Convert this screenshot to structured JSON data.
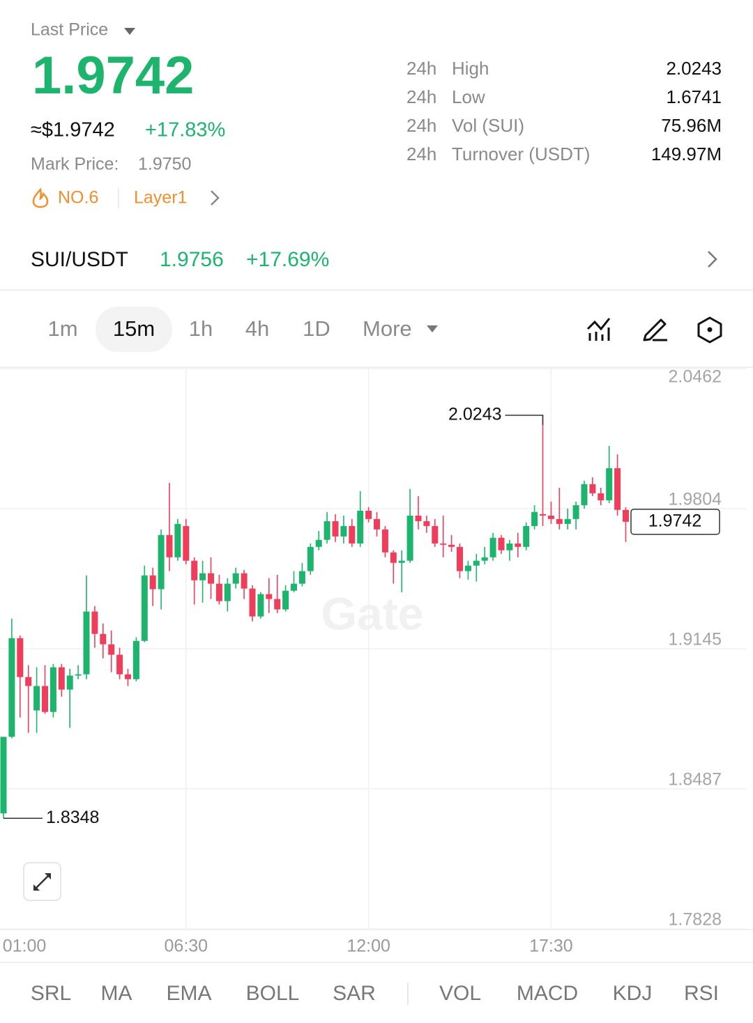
{
  "header": {
    "label": "Last Price",
    "price": "1.9742",
    "usd_price": "≈$1.9742",
    "change": "+17.83%",
    "mark_price_label": "Mark Price:",
    "mark_price": "1.9750",
    "rank": "NO.6",
    "sector": "Layer1"
  },
  "stats": [
    {
      "period": "24h",
      "label": "High",
      "value": "2.0243"
    },
    {
      "period": "24h",
      "label": "Low",
      "value": "1.6741"
    },
    {
      "period": "24h",
      "label": "Vol (SUI)",
      "value": "75.96M"
    },
    {
      "period": "24h",
      "label": "Turnover (USDT)",
      "value": "149.97M"
    }
  ],
  "pair": {
    "name": "SUI/USDT",
    "price": "1.9756",
    "change": "+17.69%"
  },
  "intervals": [
    "1m",
    "15m",
    "1h",
    "4h",
    "1D",
    "More"
  ],
  "active_interval": 1,
  "chart_data": {
    "type": "candlestick",
    "watermark": "Gate",
    "up_color": "#1db46e",
    "down_color": "#ef3e5c",
    "grid": true,
    "ylim": [
      1.7828,
      2.0462
    ],
    "yticks": [
      2.0462,
      1.9804,
      1.9145,
      1.8487,
      1.7828
    ],
    "categories": [
      "01:00",
      null,
      null,
      null,
      null,
      null,
      null,
      null,
      null,
      null,
      null,
      null,
      null,
      null,
      null,
      null,
      null,
      null,
      null,
      null,
      null,
      null,
      "06:30",
      null,
      null,
      null,
      null,
      null,
      null,
      null,
      null,
      null,
      null,
      null,
      null,
      null,
      null,
      null,
      null,
      null,
      null,
      null,
      null,
      null,
      "12:00",
      null,
      null,
      null,
      null,
      null,
      null,
      null,
      null,
      null,
      null,
      null,
      null,
      null,
      null,
      null,
      null,
      null,
      null,
      null,
      null,
      null,
      "17:30",
      null,
      null,
      null,
      null,
      null,
      null,
      null,
      null,
      null
    ],
    "open": [
      1.8371,
      1.8731,
      1.9195,
      1.9012,
      1.8855,
      1.897,
      1.8848,
      1.9058,
      1.8953,
      1.9019,
      1.9025,
      1.932,
      1.9215,
      1.9166,
      1.9117,
      1.9025,
      1.9002,
      1.9182,
      1.949,
      1.9425,
      1.968,
      1.9575,
      1.9722,
      1.9559,
      1.9467,
      1.95,
      1.9451,
      1.9369,
      1.9451,
      1.95,
      1.9428,
      1.9297,
      1.9402,
      1.9379,
      1.933,
      1.9418,
      1.9451,
      1.951,
      1.9624,
      1.9657,
      1.9745,
      1.9673,
      1.9722,
      1.964,
      1.9794,
      1.9755,
      1.9706,
      1.9598,
      1.9549,
      1.9559,
      1.9771,
      1.9745,
      1.9722,
      1.964,
      1.9634,
      1.9624,
      1.951,
      1.9536,
      1.9559,
      1.9575,
      1.9667,
      1.9608,
      1.964,
      1.9624,
      1.9722,
      1.9778,
      1.9771,
      1.9755,
      1.9732,
      1.9755,
      1.982,
      1.9919,
      1.9876,
      1.9843,
      1.9994,
      1.9798
    ],
    "high": [
      1.8731,
      1.9287,
      1.9208,
      1.9068,
      1.9058,
      1.9068,
      1.9074,
      1.9074,
      1.9051,
      1.9068,
      1.949,
      1.9346,
      1.9264,
      1.9231,
      1.915,
      1.9051,
      1.9199,
      1.9536,
      1.9526,
      1.9706,
      1.9925,
      1.9755,
      1.9755,
      1.9575,
      1.9559,
      1.9575,
      1.9493,
      1.9477,
      1.9526,
      1.9516,
      1.9444,
      1.9411,
      1.9477,
      1.9493,
      1.9444,
      1.951,
      1.9549,
      1.964,
      1.9699,
      1.9788,
      1.9778,
      1.9771,
      1.9755,
      1.9886,
      1.9811,
      1.9788,
      1.9722,
      1.9608,
      1.9608,
      1.9896,
      1.9863,
      1.9771,
      1.9755,
      1.9771,
      1.968,
      1.964,
      1.9559,
      1.9591,
      1.9624,
      1.969,
      1.968,
      1.9657,
      1.969,
      1.9739,
      1.982,
      2.0243,
      1.9837,
      1.9902,
      1.9804,
      1.9837,
      1.9935,
      1.9951,
      1.9902,
      2.0099,
      2.0059,
      1.9811
    ],
    "low": [
      1.8348,
      1.8724,
      1.8822,
      1.875,
      1.875,
      1.8839,
      1.8822,
      1.892,
      1.8773,
      1.9002,
      1.9002,
      1.915,
      1.91,
      1.9035,
      1.9002,
      1.897,
      1.8992,
      1.9176,
      1.9346,
      1.933,
      1.951,
      1.9559,
      1.9542,
      1.9353,
      1.9362,
      1.9379,
      1.9353,
      1.932,
      1.9428,
      1.9379,
      1.9274,
      1.9287,
      1.9313,
      1.9313,
      1.932,
      1.9411,
      1.9438,
      1.9493,
      1.9608,
      1.964,
      1.9647,
      1.964,
      1.9624,
      1.9624,
      1.9739,
      1.9673,
      1.9575,
      1.9451,
      1.9411,
      1.9549,
      1.9706,
      1.969,
      1.9624,
      1.9575,
      1.9601,
      1.9477,
      1.947,
      1.9461,
      1.9542,
      1.9559,
      1.9591,
      1.9559,
      1.9575,
      1.9608,
      1.9706,
      1.9722,
      1.9732,
      1.9706,
      1.9706,
      1.9706,
      1.9804,
      1.9863,
      1.982,
      1.983,
      1.9771,
      1.9647
    ],
    "close": [
      1.8731,
      1.9195,
      1.9012,
      1.897,
      1.897,
      1.8848,
      1.9058,
      1.8953,
      1.9019,
      1.9025,
      1.932,
      1.9215,
      1.9166,
      1.9117,
      1.9025,
      1.9002,
      1.9182,
      1.949,
      1.9425,
      1.968,
      1.9575,
      1.9732,
      1.9559,
      1.9467,
      1.95,
      1.9451,
      1.9369,
      1.9451,
      1.95,
      1.9428,
      1.9297,
      1.9402,
      1.9379,
      1.933,
      1.9418,
      1.9451,
      1.951,
      1.9624,
      1.9657,
      1.9745,
      1.9673,
      1.9722,
      1.964,
      1.9794,
      1.9755,
      1.9706,
      1.9598,
      1.9549,
      1.9559,
      1.9771,
      1.9745,
      1.9722,
      1.964,
      1.9634,
      1.9624,
      1.951,
      1.9536,
      1.9559,
      1.9575,
      1.9667,
      1.9608,
      1.964,
      1.9624,
      1.9722,
      1.9788,
      1.9771,
      1.9755,
      1.9732,
      1.9755,
      1.982,
      1.9919,
      1.9876,
      1.9843,
      1.9994,
      1.9798,
      1.9742
    ]
  },
  "indicators": [
    "SRL",
    "MA",
    "EMA",
    "BOLL",
    "SAR",
    "VOL",
    "MACD",
    "KDJ",
    "RSI"
  ]
}
